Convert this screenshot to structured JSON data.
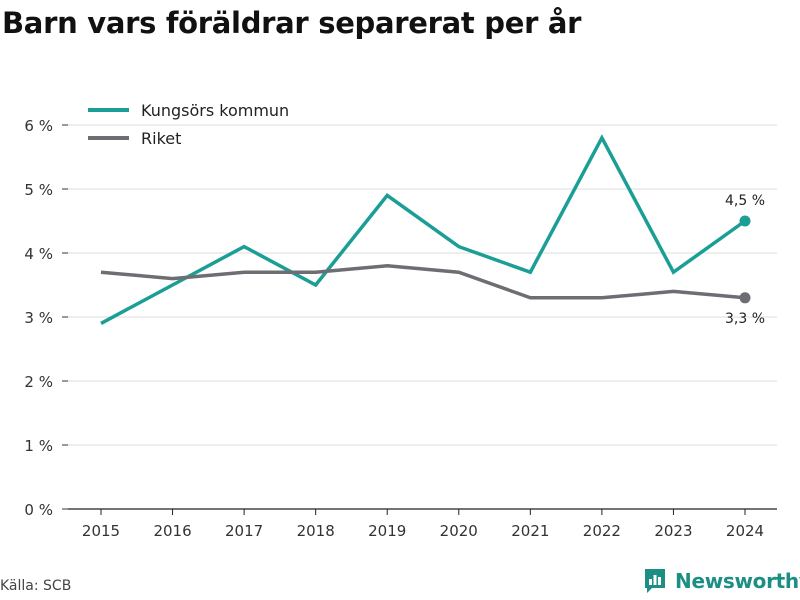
{
  "title": "Barn vars föräldrar separerat per år",
  "source": "Källa: SCB",
  "brand": {
    "name": "Newsworthy",
    "icon": "newsworthy-logo-icon",
    "color": "#1c8e84"
  },
  "chart_data": {
    "type": "line",
    "title": "Barn vars föräldrar separerat per år",
    "xlabel": "",
    "ylabel": "",
    "x": [
      "2015",
      "2016",
      "2017",
      "2018",
      "2019",
      "2020",
      "2021",
      "2022",
      "2023",
      "2024"
    ],
    "ylim": [
      0,
      6
    ],
    "yticks": [
      0,
      1,
      2,
      3,
      4,
      5,
      6
    ],
    "ytick_labels": [
      "0 %",
      "1 %",
      "2 %",
      "3 %",
      "4 %",
      "5 %",
      "6 %"
    ],
    "grid": true,
    "legend_position": "top-left",
    "series": [
      {
        "name": "Kungsörs kommun",
        "color": "#1a9e96",
        "values": [
          2.9,
          3.5,
          4.1,
          3.5,
          4.9,
          4.1,
          3.7,
          5.8,
          3.7,
          4.5
        ],
        "end_label": "4,5 %"
      },
      {
        "name": "Riket",
        "color": "#6e6d73",
        "values": [
          3.7,
          3.6,
          3.7,
          3.7,
          3.8,
          3.7,
          3.3,
          3.3,
          3.4,
          3.3
        ],
        "end_label": "3,3 %"
      }
    ]
  }
}
